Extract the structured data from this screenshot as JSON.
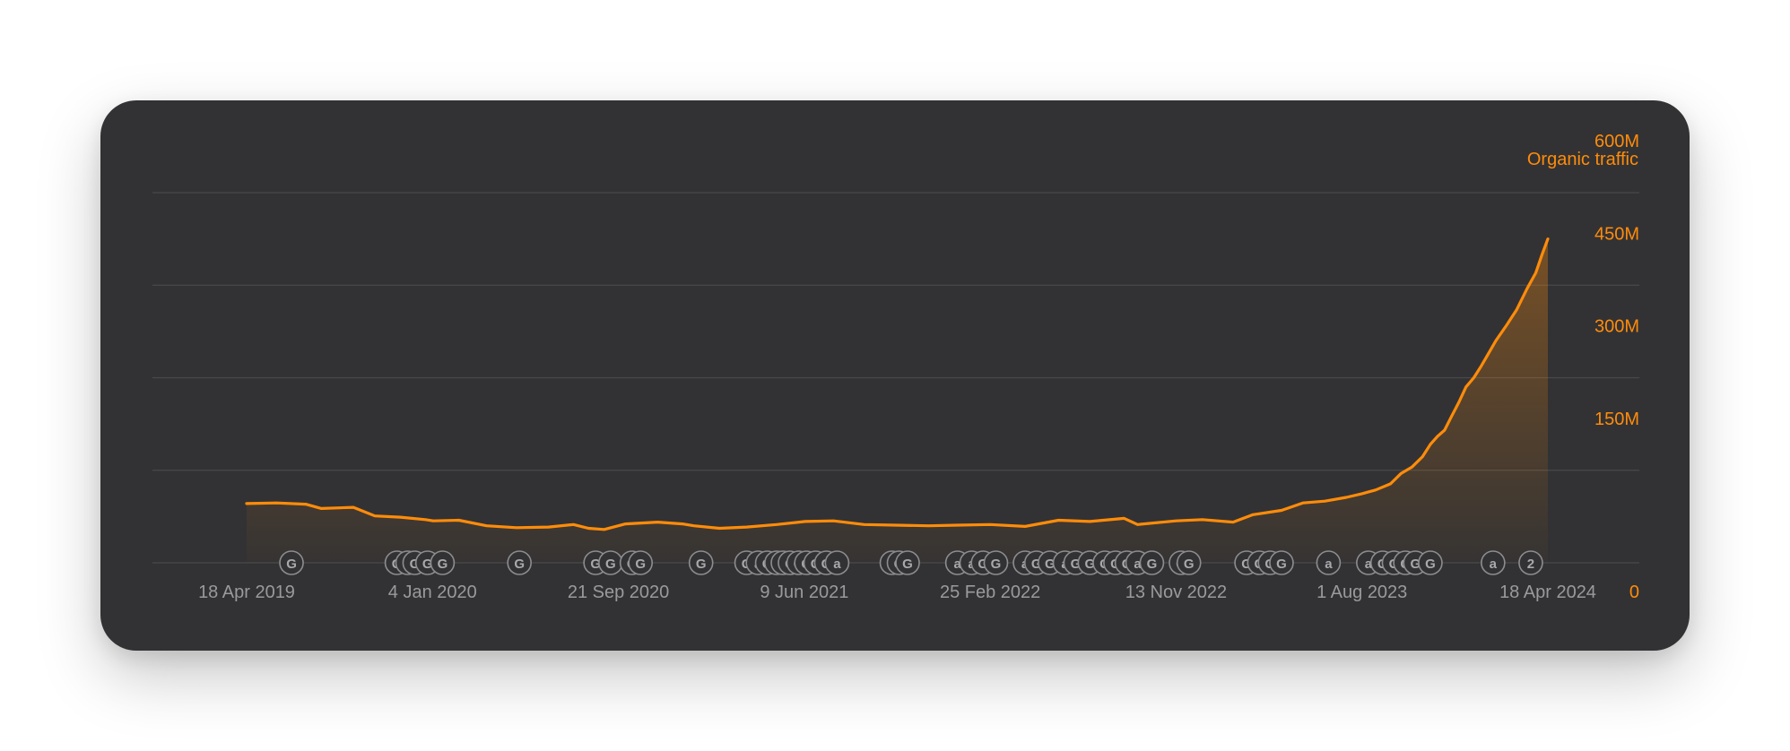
{
  "chart_data": {
    "type": "area",
    "title": "",
    "legend": "Organic traffic",
    "xlabel": "",
    "ylabel": "",
    "x_tick_labels": [
      "18 Apr 2019",
      "4 Jan 2020",
      "21 Sep 2020",
      "9 Jun 2021",
      "25 Feb 2022",
      "13 Nov 2022",
      "1 Aug 2023",
      "18 Apr 2024"
    ],
    "y_tick_labels": [
      "0",
      "150M",
      "300M",
      "450M",
      "600M"
    ],
    "ylim": [
      0,
      600000000
    ],
    "xlim": [
      "2019-04-18",
      "2024-04-18"
    ],
    "grid": true,
    "color": "#ff8c0a",
    "series": [
      {
        "name": "Organic traffic",
        "points": [
          [
            "2019-04-18",
            96000000
          ],
          [
            "2019-05-30",
            97000000
          ],
          [
            "2019-07-10",
            95000000
          ],
          [
            "2019-08-01",
            88000000
          ],
          [
            "2019-09-15",
            90000000
          ],
          [
            "2019-10-15",
            76000000
          ],
          [
            "2019-11-20",
            74000000
          ],
          [
            "2019-12-25",
            70000000
          ],
          [
            "2020-01-05",
            68000000
          ],
          [
            "2020-02-10",
            69000000
          ],
          [
            "2020-03-20",
            60000000
          ],
          [
            "2020-05-01",
            57000000
          ],
          [
            "2020-06-15",
            58000000
          ],
          [
            "2020-07-20",
            62000000
          ],
          [
            "2020-08-10",
            56000000
          ],
          [
            "2020-09-01",
            54000000
          ],
          [
            "2020-10-01",
            63000000
          ],
          [
            "2020-11-15",
            66000000
          ],
          [
            "2020-12-20",
            63000000
          ],
          [
            "2021-01-05",
            60000000
          ],
          [
            "2021-02-10",
            56000000
          ],
          [
            "2021-03-20",
            58000000
          ],
          [
            "2021-05-01",
            62000000
          ],
          [
            "2021-06-10",
            67000000
          ],
          [
            "2021-07-20",
            68000000
          ],
          [
            "2021-09-01",
            62000000
          ],
          [
            "2021-10-15",
            61000000
          ],
          [
            "2021-12-01",
            60000000
          ],
          [
            "2022-01-10",
            61000000
          ],
          [
            "2022-02-25",
            62000000
          ],
          [
            "2022-04-15",
            59000000
          ],
          [
            "2022-06-01",
            69000000
          ],
          [
            "2022-07-15",
            67000000
          ],
          [
            "2022-09-01",
            72000000
          ],
          [
            "2022-09-20",
            62000000
          ],
          [
            "2022-11-13",
            68000000
          ],
          [
            "2022-12-20",
            70000000
          ],
          [
            "2023-02-01",
            66000000
          ],
          [
            "2023-03-01",
            78000000
          ],
          [
            "2023-04-10",
            85000000
          ],
          [
            "2023-05-10",
            97000000
          ],
          [
            "2023-06-10",
            100000000
          ],
          [
            "2023-07-10",
            106000000
          ],
          [
            "2023-08-01",
            112000000
          ],
          [
            "2023-08-20",
            118000000
          ],
          [
            "2023-09-10",
            128000000
          ],
          [
            "2023-09-25",
            145000000
          ],
          [
            "2023-10-10",
            155000000
          ],
          [
            "2023-10-25",
            172000000
          ],
          [
            "2023-11-05",
            192000000
          ],
          [
            "2023-11-15",
            205000000
          ],
          [
            "2023-11-25",
            215000000
          ],
          [
            "2023-12-05",
            238000000
          ],
          [
            "2023-12-15",
            260000000
          ],
          [
            "2023-12-25",
            285000000
          ],
          [
            "2024-01-05",
            300000000
          ],
          [
            "2024-01-15",
            318000000
          ],
          [
            "2024-01-25",
            338000000
          ],
          [
            "2024-02-05",
            360000000
          ],
          [
            "2024-02-20",
            385000000
          ],
          [
            "2024-03-05",
            410000000
          ],
          [
            "2024-03-20",
            445000000
          ],
          [
            "2024-04-01",
            470000000
          ],
          [
            "2024-04-10",
            500000000
          ],
          [
            "2024-04-18",
            525000000
          ]
        ]
      }
    ],
    "annotations": [
      {
        "date": "2019-06-20",
        "label": "G"
      },
      {
        "date": "2019-11-15",
        "label": "G"
      },
      {
        "date": "2019-11-30",
        "label": "G"
      },
      {
        "date": "2019-12-10",
        "label": "G"
      },
      {
        "date": "2019-12-28",
        "label": "G"
      },
      {
        "date": "2020-01-18",
        "label": "G"
      },
      {
        "date": "2020-05-05",
        "label": "G"
      },
      {
        "date": "2020-08-20",
        "label": "G"
      },
      {
        "date": "2020-09-10",
        "label": "G"
      },
      {
        "date": "2020-10-10",
        "label": "G"
      },
      {
        "date": "2020-10-22",
        "label": "G"
      },
      {
        "date": "2021-01-15",
        "label": "G"
      },
      {
        "date": "2021-03-20",
        "label": "G"
      },
      {
        "date": "2021-04-05",
        "label": "a"
      },
      {
        "date": "2021-04-18",
        "label": "G"
      },
      {
        "date": "2021-05-01",
        "label": "G"
      },
      {
        "date": "2021-05-10",
        "label": "G"
      },
      {
        "date": "2021-05-20",
        "label": "G"
      },
      {
        "date": "2021-06-01",
        "label": "G"
      },
      {
        "date": "2021-06-12",
        "label": "G"
      },
      {
        "date": "2021-06-25",
        "label": "G"
      },
      {
        "date": "2021-07-10",
        "label": "G"
      },
      {
        "date": "2021-07-25",
        "label": "a"
      },
      {
        "date": "2021-10-10",
        "label": "G"
      },
      {
        "date": "2021-10-20",
        "label": "G"
      },
      {
        "date": "2021-11-01",
        "label": "G"
      },
      {
        "date": "2022-01-10",
        "label": "a"
      },
      {
        "date": "2022-01-30",
        "label": "a"
      },
      {
        "date": "2022-02-15",
        "label": "G"
      },
      {
        "date": "2022-03-05",
        "label": "G"
      },
      {
        "date": "2022-04-15",
        "label": "a"
      },
      {
        "date": "2022-05-01",
        "label": "G"
      },
      {
        "date": "2022-05-20",
        "label": "G"
      },
      {
        "date": "2022-06-10",
        "label": "a"
      },
      {
        "date": "2022-06-25",
        "label": "G"
      },
      {
        "date": "2022-07-15",
        "label": "G"
      },
      {
        "date": "2022-08-05",
        "label": "G"
      },
      {
        "date": "2022-08-20",
        "label": "G"
      },
      {
        "date": "2022-09-05",
        "label": "G"
      },
      {
        "date": "2022-09-20",
        "label": "a"
      },
      {
        "date": "2022-10-10",
        "label": "G"
      },
      {
        "date": "2022-11-20",
        "label": "G"
      },
      {
        "date": "2022-12-01",
        "label": "G"
      },
      {
        "date": "2023-02-20",
        "label": "G"
      },
      {
        "date": "2023-03-10",
        "label": "G"
      },
      {
        "date": "2023-03-25",
        "label": "G"
      },
      {
        "date": "2023-04-10",
        "label": "G"
      },
      {
        "date": "2023-06-15",
        "label": "a"
      },
      {
        "date": "2023-08-10",
        "label": "a"
      },
      {
        "date": "2023-08-30",
        "label": "G"
      },
      {
        "date": "2023-09-15",
        "label": "G"
      },
      {
        "date": "2023-10-01",
        "label": "G"
      },
      {
        "date": "2023-10-15",
        "label": "G"
      },
      {
        "date": "2023-11-05",
        "label": "G"
      },
      {
        "date": "2024-02-01",
        "label": "a"
      },
      {
        "date": "2024-03-25",
        "label": "2"
      }
    ]
  }
}
